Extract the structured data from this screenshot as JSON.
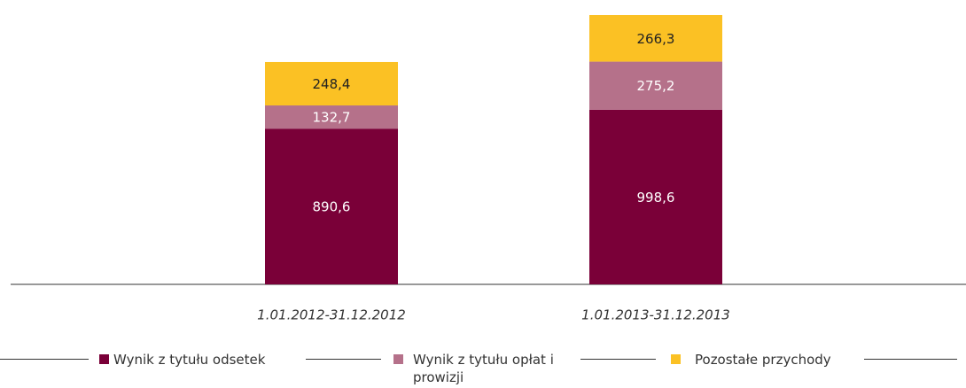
{
  "chart_data": {
    "type": "stacked-bar",
    "categories": [
      "1.01.2012-31.12.2012",
      "1.01.2013-31.12.2013"
    ],
    "series": [
      {
        "name": "Wynik z tytułu odsetek",
        "color": "#7a0038",
        "values": [
          890.6,
          998.6
        ],
        "value_labels": [
          "890,6",
          "998,6"
        ]
      },
      {
        "name": "Wynik z tytułu opłat i prowizji",
        "color": "#b5718a",
        "values": [
          132.7,
          275.2
        ],
        "value_labels": [
          "132,7",
          "275,2"
        ]
      },
      {
        "name": "Pozostałe przychody",
        "color": "#fbc124",
        "values": [
          248.4,
          266.3
        ],
        "value_labels": [
          "248,4",
          "266,3"
        ]
      }
    ],
    "legend": "bottom"
  }
}
